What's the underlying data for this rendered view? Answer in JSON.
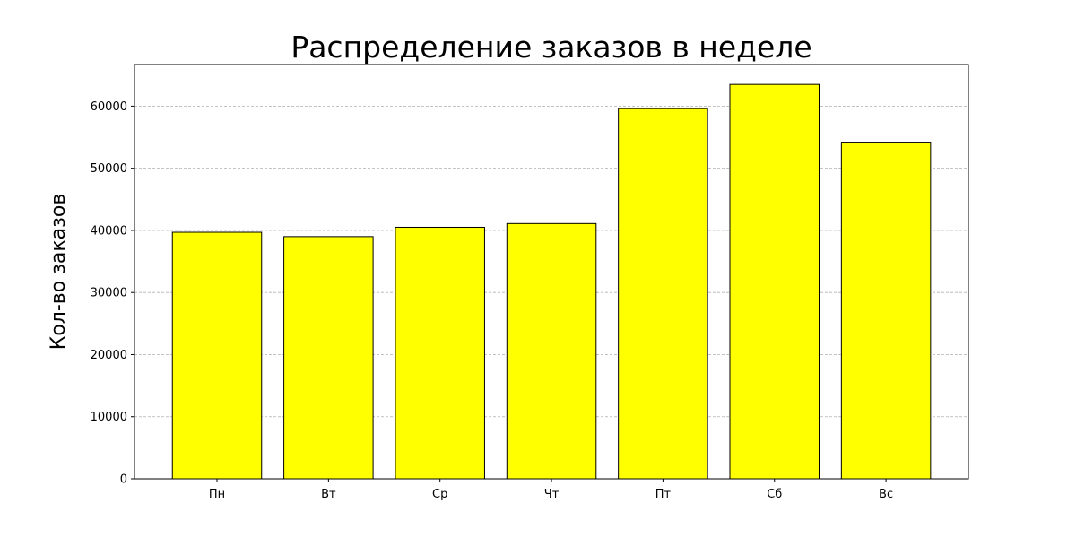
{
  "chart_data": {
    "type": "bar",
    "title": "Распределение заказов в неделе",
    "xlabel": "",
    "ylabel": "Кол-во заказов",
    "categories": [
      "Пн",
      "Вт",
      "Ср",
      "Чт",
      "Пт",
      "Сб",
      "Вс"
    ],
    "values": [
      39700,
      39000,
      40500,
      41100,
      59600,
      63500,
      54200
    ],
    "ylim": [
      0,
      66700
    ],
    "yticks": [
      0,
      10000,
      20000,
      30000,
      40000,
      50000,
      60000
    ],
    "grid": "y-dashed",
    "legend": "none",
    "colors": {
      "bar_fill": "#ffff00",
      "bar_edge": "#000000",
      "grid": "#b0b0b0",
      "axis": "#000000"
    }
  }
}
